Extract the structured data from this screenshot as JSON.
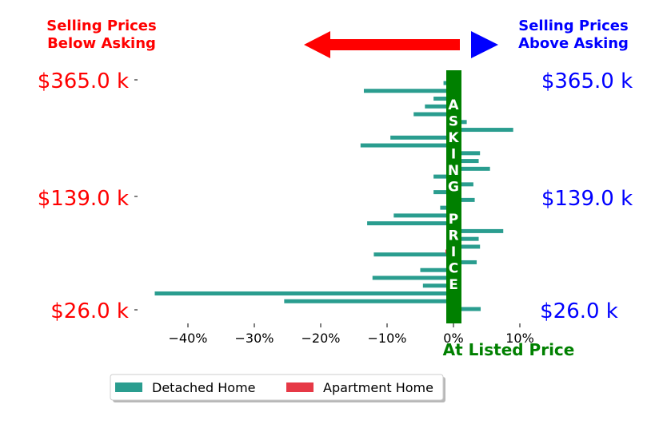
{
  "header": {
    "left_line1": "Selling Prices",
    "left_line2": "Below Asking",
    "right_line1": "Selling Prices",
    "right_line2": "Above Asking",
    "left_color": "#ff0000",
    "right_color": "#0000ff"
  },
  "center_label": "At Listed Price",
  "vertical_text": "ASKING PRICE",
  "colors": {
    "detached": "#2a9d8f",
    "apartment": "#e63946",
    "asking_band": "#008000"
  },
  "price_labels": [
    "$365.0 k",
    "$139.0 k",
    "$26.0 k"
  ],
  "x_ticks": [
    "−40%",
    "−30%",
    "−20%",
    "−10%",
    "0%",
    "10%"
  ],
  "legend": {
    "detached": "Detached Home",
    "apartment": "Apartment Home"
  },
  "chart_data": {
    "type": "bar",
    "orientation": "horizontal",
    "xlim": [
      -45,
      10
    ],
    "x_unit": "% difference from asking price",
    "series": [
      {
        "name": "Detached Home",
        "values": [
          -1.5,
          -13.5,
          -3,
          -4.3,
          -6,
          2,
          9,
          -9.5,
          -14,
          4,
          3.8,
          5.5,
          -3,
          3,
          -3,
          3.2,
          -2,
          -9,
          -13,
          7.5,
          3.8,
          4,
          -12,
          3.5,
          -5,
          -12.2,
          -4.6,
          -45,
          -25.5,
          4.1
        ]
      },
      {
        "name": "Apartment Home",
        "values": [
          -1.2
        ]
      }
    ]
  }
}
